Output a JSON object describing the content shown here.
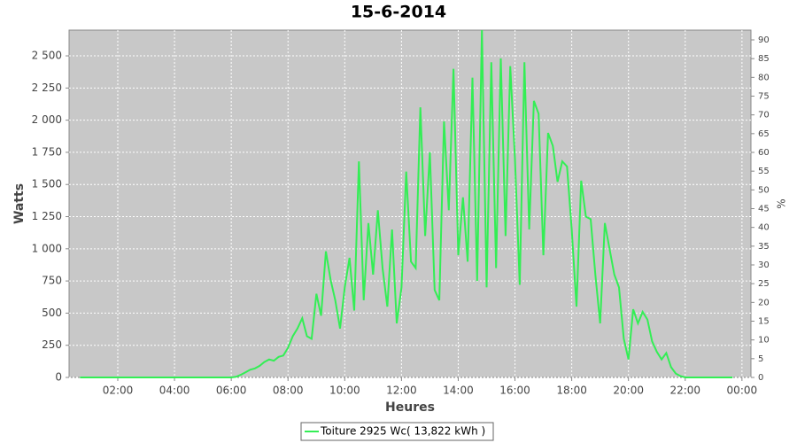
{
  "chart_data": {
    "type": "line",
    "title": "15-6-2014",
    "xlabel": "Heures",
    "ylabel": "Watts",
    "y2label": "%",
    "x": [
      40,
      50,
      60,
      70,
      80,
      90,
      100,
      110,
      120,
      130,
      140,
      150,
      160,
      170,
      180,
      190,
      200,
      210,
      220,
      230,
      240,
      250,
      260,
      270,
      280,
      290,
      300,
      310,
      320,
      330,
      340,
      350,
      360,
      370,
      380,
      390,
      400,
      410,
      420,
      430,
      440,
      450,
      460,
      470,
      480,
      490,
      500,
      510,
      520,
      530,
      540,
      550,
      560,
      570,
      580,
      590,
      600,
      610,
      620,
      630,
      640,
      650,
      660,
      670,
      680,
      690,
      700,
      710,
      720,
      730,
      740,
      750,
      760,
      770,
      780,
      790,
      800,
      810,
      820,
      830,
      840,
      850,
      860,
      870,
      880,
      890,
      900,
      910,
      920,
      930,
      940,
      950,
      960,
      970,
      980,
      990,
      1000,
      1010,
      1020,
      1030,
      1040,
      1050,
      1060,
      1070,
      1080,
      1090,
      1100,
      1110,
      1120,
      1130,
      1140,
      1150,
      1160,
      1170,
      1180,
      1190,
      1200,
      1210,
      1220,
      1230,
      1240,
      1250,
      1260,
      1270,
      1280,
      1290,
      1300,
      1310,
      1320,
      1330,
      1340,
      1350,
      1360,
      1370,
      1380,
      1390,
      1400,
      1410,
      1420
    ],
    "series": [
      {
        "name": "Toiture 2925 Wc( 13,822 kWh )",
        "color": "#33ee55",
        "values": [
          0,
          0,
          0,
          0,
          0,
          0,
          0,
          0,
          0,
          0,
          0,
          0,
          0,
          0,
          0,
          0,
          0,
          0,
          0,
          0,
          0,
          0,
          0,
          0,
          0,
          0,
          0,
          0,
          0,
          0,
          0,
          0,
          0,
          5,
          20,
          40,
          60,
          70,
          90,
          120,
          140,
          130,
          160,
          170,
          230,
          320,
          380,
          460,
          320,
          300,
          650,
          480,
          980,
          760,
          600,
          380,
          700,
          930,
          520,
          1680,
          600,
          1200,
          800,
          1300,
          850,
          550,
          1150,
          420,
          700,
          1600,
          900,
          850,
          2100,
          1100,
          1750,
          680,
          600,
          1990,
          1300,
          2400,
          950,
          1400,
          900,
          2330,
          750,
          2700,
          700,
          2450,
          850,
          2480,
          1100,
          2420,
          1700,
          720,
          2450,
          1150,
          2150,
          2050,
          950,
          1900,
          1800,
          1520,
          1680,
          1640,
          1150,
          550,
          1530,
          1250,
          1230,
          800,
          420,
          1200,
          1000,
          800,
          700,
          300,
          140,
          530,
          420,
          510,
          450,
          280,
          200,
          140,
          190,
          80,
          30,
          10,
          0,
          0,
          0,
          0,
          0,
          0,
          0,
          0,
          0,
          0,
          0
        ]
      }
    ],
    "xlim": [
      17,
      1459
    ],
    "xticks": [
      {
        "value": 120,
        "label": "02:00"
      },
      {
        "value": 240,
        "label": "04:00"
      },
      {
        "value": 360,
        "label": "06:00"
      },
      {
        "value": 480,
        "label": "08:00"
      },
      {
        "value": 600,
        "label": "10:00"
      },
      {
        "value": 720,
        "label": "12:00"
      },
      {
        "value": 840,
        "label": "14:00"
      },
      {
        "value": 960,
        "label": "16:00"
      },
      {
        "value": 1080,
        "label": "18:00"
      },
      {
        "value": 1200,
        "label": "20:00"
      },
      {
        "value": 1320,
        "label": "22:00"
      },
      {
        "value": 1440,
        "label": "00:00"
      }
    ],
    "ylim": [
      0,
      2700
    ],
    "yticks": [
      0,
      250,
      500,
      750,
      {
        "value": 1000,
        "label": "1 000"
      },
      {
        "value": 1250,
        "label": "1 250"
      },
      {
        "value": 1500,
        "label": "1 500"
      },
      {
        "value": 1750,
        "label": "1 750"
      },
      {
        "value": 2000,
        "label": "2 000"
      },
      {
        "value": 2250,
        "label": "2 250"
      },
      {
        "value": 2500,
        "label": "2 500"
      }
    ],
    "y2lim": [
      0,
      92.6
    ],
    "y2ticks": [
      0,
      5,
      10,
      15,
      20,
      25,
      30,
      35,
      40,
      45,
      50,
      55,
      60,
      65,
      70,
      75,
      80,
      85,
      90
    ],
    "grid": true,
    "legend": "bottom"
  }
}
